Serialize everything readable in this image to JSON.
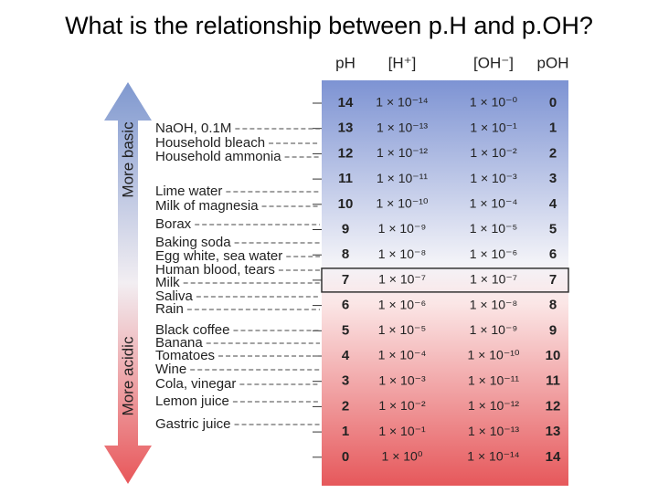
{
  "title": "What is the relationship between p.H and p.OH?",
  "arrow": {
    "top_label": "More basic",
    "bottom_label": "More acidic"
  },
  "table": {
    "headers": [
      "pH",
      "[H⁺]",
      "[OH⁻]",
      "pOH"
    ],
    "rows": [
      [
        "14",
        "1 × 10⁻¹⁴",
        "1 × 10⁻⁰",
        "0"
      ],
      [
        "13",
        "1 × 10⁻¹³",
        "1 × 10⁻¹",
        "1"
      ],
      [
        "12",
        "1 × 10⁻¹²",
        "1 × 10⁻²",
        "2"
      ],
      [
        "11",
        "1 × 10⁻¹¹",
        "1 × 10⁻³",
        "3"
      ],
      [
        "10",
        "1 × 10⁻¹⁰",
        "1 × 10⁻⁴",
        "4"
      ],
      [
        "9",
        "1 × 10⁻⁹",
        "1 × 10⁻⁵",
        "5"
      ],
      [
        "8",
        "1 × 10⁻⁸",
        "1 × 10⁻⁶",
        "6"
      ],
      [
        "7",
        "1 × 10⁻⁷",
        "1 × 10⁻⁷",
        "7"
      ],
      [
        "6",
        "1 × 10⁻⁶",
        "1 × 10⁻⁸",
        "8"
      ],
      [
        "5",
        "1 × 10⁻⁵",
        "1 × 10⁻⁹",
        "9"
      ],
      [
        "4",
        "1 × 10⁻⁴",
        "1 × 10⁻¹⁰",
        "10"
      ],
      [
        "3",
        "1 × 10⁻³",
        "1 × 10⁻¹¹",
        "11"
      ],
      [
        "2",
        "1 × 10⁻²",
        "1 × 10⁻¹²",
        "12"
      ],
      [
        "1",
        "1 × 10⁻¹",
        "1 × 10⁻¹³",
        "13"
      ],
      [
        "0",
        "1 × 10⁰",
        "1 × 10⁻¹⁴",
        "14"
      ]
    ]
  },
  "substances": [
    "NaOH, 0.1M",
    "Household bleach",
    "Household ammonia",
    "Lime water",
    "Milk of magnesia",
    "Borax",
    "Baking soda",
    "Egg white, sea water",
    "Human blood, tears",
    "Milk",
    "Saliva",
    "Rain",
    "Black coffee",
    "Banana",
    "Tomatoes",
    "Wine",
    "Cola, vinegar",
    "Lemon juice",
    "Gastric juice"
  ]
}
